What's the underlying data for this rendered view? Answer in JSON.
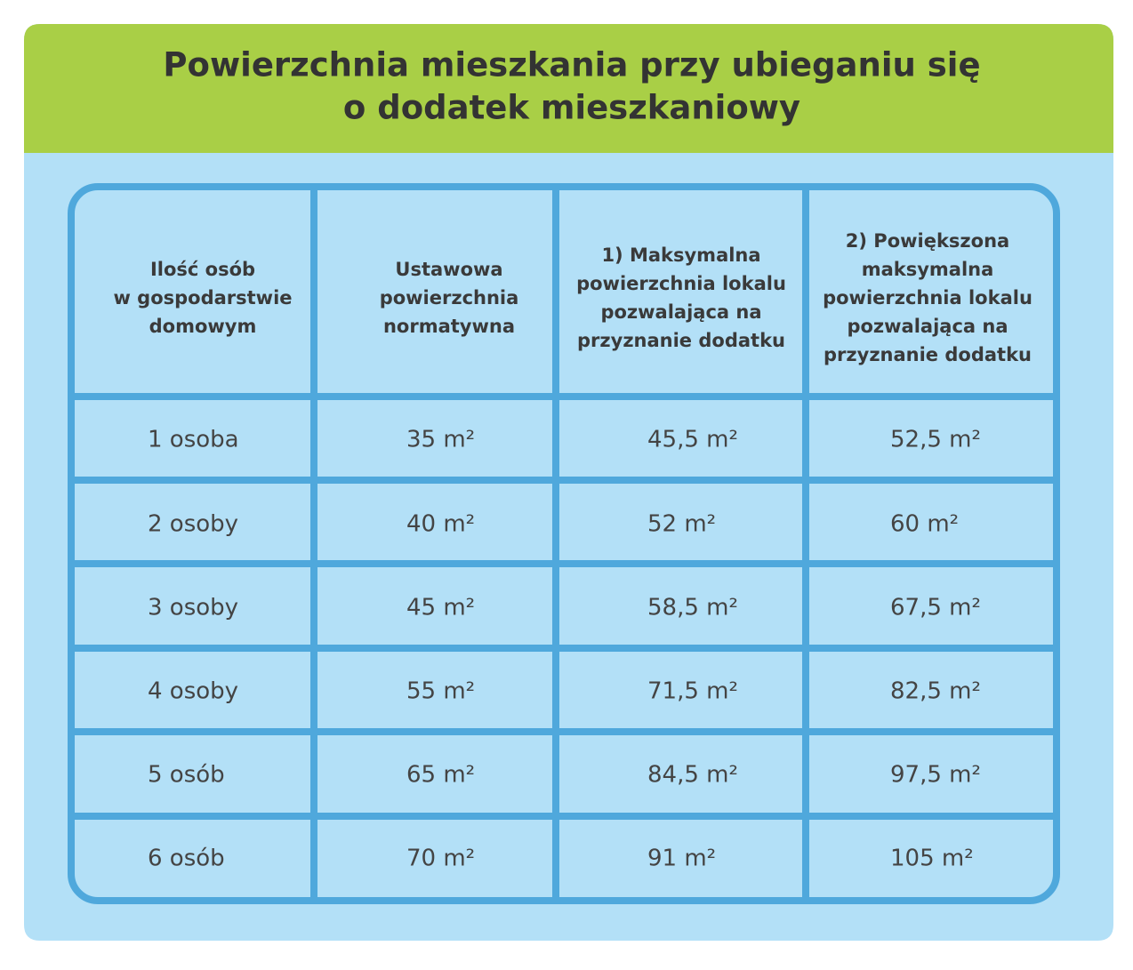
{
  "header": {
    "title": [
      "Powierzchnia mieszkania przy ubieganiu się",
      "o dodatek mieszkaniowy"
    ]
  },
  "table": {
    "columns": [
      [
        "Ilość osób",
        "w gospodarstwie",
        "domowym"
      ],
      [
        "Ustawowa",
        "powierzchnia",
        "normatywna"
      ],
      [
        "1) Maksymalna",
        "powierzchnia lokalu",
        "pozwalająca na",
        "przyznanie dodatku"
      ],
      [
        "2) Powiększona",
        "maksymalna",
        "powierzchnia lokalu",
        "pozwalająca na",
        "przyznanie dodatku"
      ]
    ],
    "rows": [
      [
        "1 osoba",
        "35 m²",
        "45,5 m²",
        "52,5 m²"
      ],
      [
        "2 osoby",
        "40 m²",
        "52 m²",
        "60 m²"
      ],
      [
        "3 osoby",
        "45 m²",
        "58,5 m²",
        "67,5 m²"
      ],
      [
        "4 osoby",
        "55 m²",
        "71,5 m²",
        "82,5 m²"
      ],
      [
        "5 osób",
        "65 m²",
        "84,5 m²",
        "97,5 m²"
      ],
      [
        "6 osób",
        "70 m²",
        "91 m²",
        "105 m²"
      ]
    ]
  }
}
